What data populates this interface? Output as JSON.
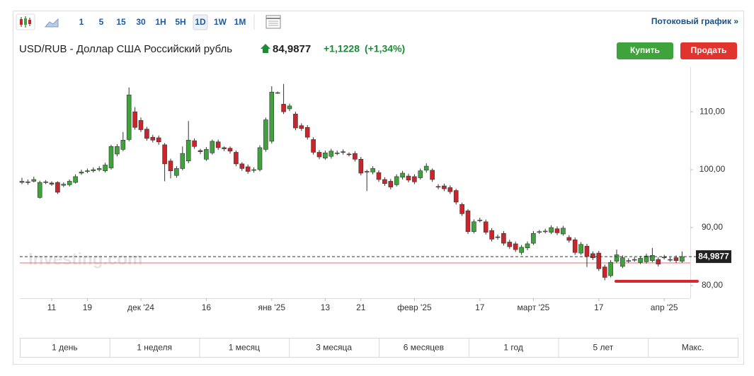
{
  "toolbar": {
    "intervals": [
      "1",
      "5",
      "15",
      "30",
      "1H",
      "5H",
      "1D",
      "1W",
      "1M"
    ],
    "link": "Потоковый график »"
  },
  "header": {
    "title": "USD/RUB - Доллар США Российский рубль",
    "price": "84,9877",
    "change": "+1,1228",
    "change_percent": "(+1,34%)",
    "buy": "Купить",
    "sell": "Продать"
  },
  "chart_data": {
    "type": "candlestick",
    "watermark": "Investing.com",
    "up_color": "#3fa33c",
    "down_color": "#c8262b",
    "grid": false,
    "categories": [
      null,
      null,
      null,
      null,
      null,
      "11",
      null,
      null,
      null,
      null,
      null,
      "19",
      null,
      null,
      null,
      null,
      null,
      null,
      null,
      null,
      "дек '24",
      null,
      null,
      null,
      null,
      null,
      null,
      null,
      null,
      null,
      null,
      "16",
      null,
      null,
      null,
      null,
      null,
      null,
      null,
      null,
      null,
      null,
      "янв '25",
      null,
      null,
      null,
      null,
      null,
      null,
      null,
      null,
      "13",
      null,
      null,
      null,
      null,
      null,
      "21",
      null,
      null,
      null,
      null,
      null,
      null,
      null,
      null,
      "февр '25",
      null,
      null,
      null,
      null,
      null,
      null,
      null,
      null,
      null,
      null,
      "17",
      null,
      null,
      null,
      null,
      null,
      null,
      null,
      null,
      "март '25",
      null,
      null,
      null,
      null,
      null,
      null,
      null,
      null,
      null,
      null,
      "17",
      null,
      null,
      null,
      null,
      null,
      null,
      null,
      null,
      null,
      null,
      "апр '25",
      null,
      null,
      null
    ],
    "open": [
      97.8,
      97.9,
      98.0,
      95.2,
      97.8,
      97.7,
      97.8,
      97.3,
      97.4,
      97.8,
      99.4,
      99.7,
      99.8,
      100.0,
      99.8,
      100.3,
      102.7,
      103.5,
      105.2,
      110.0,
      108.5,
      107.0,
      105.6,
      105.5,
      104.3,
      101.5,
      99.0,
      100.2,
      101.5,
      105.0,
      103.3,
      101.8,
      102.9,
      104.8,
      103.8,
      103.7,
      103.0,
      101.0,
      100.5,
      99.9,
      100.0,
      103.5,
      104.9,
      113.3,
      111.3,
      110.5,
      109.6,
      107.6,
      107.3,
      105.2,
      103.0,
      102.0,
      102.3,
      102.8,
      103.1,
      102.7,
      102.8,
      101.8,
      99.7,
      99.6,
      99.5,
      98.3,
      98.0,
      97.4,
      98.7,
      98.9,
      98.8,
      98.6,
      99.9,
      99.9,
      97.1,
      97.2,
      96.9,
      96.4,
      94.0,
      92.9,
      89.3,
      91.2,
      91.0,
      89.5,
      88.4,
      89.0,
      87.5,
      87.2,
      85.7,
      86.5,
      87.3,
      89.2,
      89.3,
      89.2,
      89.8,
      88.9,
      88.3,
      87.9,
      85.6,
      86.8,
      85.5,
      85.6,
      83.2,
      81.7,
      84.2,
      83.3,
      84.2,
      84.4,
      84.0,
      84.1,
      84.3,
      84.5,
      84.8,
      84.4,
      84.8,
      84.2
    ],
    "high": [
      98.6,
      98.3,
      98.8,
      98.1,
      98.2,
      98.0,
      98.0,
      97.8,
      98.3,
      99.2,
      100.0,
      100.2,
      100.4,
      100.6,
      101.2,
      104.3,
      104.4,
      106.5,
      114.2,
      110.8,
      109.0,
      107.4,
      106.0,
      105.9,
      104.6,
      101.9,
      100.6,
      104.0,
      108.4,
      105.4,
      103.6,
      103.9,
      105.2,
      105.2,
      104.0,
      104.0,
      103.3,
      101.3,
      100.9,
      100.4,
      104.2,
      109.0,
      114.4,
      113.5,
      114.8,
      111.4,
      110.0,
      108.0,
      107.7,
      105.6,
      103.4,
      103.3,
      103.6,
      103.3,
      103.5,
      103.0,
      103.2,
      102.2,
      100.0,
      100.6,
      99.9,
      98.7,
      98.4,
      99.2,
      99.8,
      99.3,
      99.2,
      100.2,
      101.1,
      100.2,
      97.5,
      97.6,
      97.3,
      96.7,
      94.3,
      93.2,
      91.4,
      91.7,
      91.4,
      89.9,
      88.8,
      89.4,
      87.9,
      87.6,
      87.0,
      87.6,
      89.4,
      89.6,
      89.8,
      90.4,
      90.2,
      90.3,
      88.7,
      88.3,
      87.5,
      87.2,
      85.9,
      86.0,
      83.6,
      84.4,
      86.2,
      85.2,
      84.7,
      84.9,
      85.1,
      85.5,
      86.5,
      84.9,
      85.3,
      84.9,
      85.2,
      85.9
    ],
    "low": [
      97.5,
      97.4,
      97.8,
      95.0,
      97.5,
      97.2,
      95.8,
      97.0,
      97.1,
      97.6,
      99.1,
      99.4,
      99.5,
      99.7,
      99.5,
      100.0,
      102.3,
      103.2,
      104.9,
      106.9,
      106.5,
      105.0,
      104.7,
      104.3,
      98.0,
      98.5,
      98.6,
      99.9,
      101.1,
      103.6,
      102.7,
      101.5,
      102.6,
      103.4,
      103.2,
      102.8,
      100.6,
      99.8,
      99.3,
      99.5,
      99.7,
      103.1,
      104.5,
      113.1,
      109.6,
      110.1,
      106.8,
      106.7,
      105.2,
      102.6,
      101.8,
      101.7,
      101.9,
      102.5,
      102.6,
      102.3,
      101.4,
      99.0,
      96.3,
      99.2,
      97.9,
      97.2,
      96.6,
      97.1,
      98.3,
      97.8,
      97.5,
      98.3,
      99.5,
      97.9,
      96.6,
      96.3,
      95.8,
      94.0,
      92.0,
      88.9,
      89.0,
      90.9,
      88.8,
      87.6,
      87.9,
      86.9,
      86.3,
      85.8,
      85.3,
      86.1,
      87.0,
      88.9,
      89.0,
      88.9,
      88.7,
      88.6,
      87.4,
      85.3,
      85.3,
      83.2,
      84.4,
      82.5,
      80.9,
      81.4,
      83.9,
      83.0,
      83.9,
      84.1,
      83.7,
      83.8,
      84.0,
      83.3,
      84.5,
      84.1,
      83.9,
      83.9
    ],
    "close": [
      98.0,
      97.8,
      98.3,
      97.8,
      97.9,
      97.5,
      96.1,
      97.5,
      98.0,
      98.8,
      99.6,
      99.8,
      100.0,
      100.2,
      100.8,
      104.0,
      104.0,
      105.1,
      112.9,
      107.3,
      106.9,
      105.4,
      105.1,
      104.8,
      101.0,
      99.8,
      100.2,
      102.8,
      105.1,
      104.0,
      103.1,
      103.5,
      104.9,
      103.8,
      103.6,
      103.2,
      101.0,
      100.2,
      99.7,
      100.0,
      103.8,
      108.6,
      113.4,
      113.3,
      110.0,
      111.0,
      107.2,
      107.1,
      105.6,
      103.0,
      102.2,
      102.9,
      103.2,
      102.9,
      103.0,
      102.6,
      101.8,
      99.4,
      99.6,
      100.2,
      98.3,
      97.6,
      97.0,
      98.8,
      99.4,
      98.2,
      97.9,
      99.8,
      100.6,
      98.3,
      97.0,
      96.7,
      96.2,
      94.4,
      92.4,
      89.3,
      91.0,
      91.3,
      89.2,
      88.0,
      88.3,
      87.3,
      86.7,
      86.2,
      86.6,
      87.2,
      89.0,
      89.3,
      89.4,
      90.0,
      89.1,
      89.9,
      87.8,
      85.7,
      87.1,
      85.0,
      84.8,
      82.9,
      81.4,
      84.0,
      85.3,
      84.8,
      84.3,
      84.5,
      84.7,
      85.1,
      85.2,
      83.7,
      84.9,
      84.5,
      84.3,
      84.9877
    ],
    "last_price": {
      "value": 84.9877,
      "label": "84,9877"
    },
    "ylim": [
      77.8,
      117.7
    ],
    "yticks": [
      {
        "value": 80,
        "label": "80,00"
      },
      {
        "value": 90,
        "label": "90,00"
      },
      {
        "value": 100,
        "label": "100,00"
      },
      {
        "value": 110,
        "label": "110,00"
      }
    ]
  },
  "ranges": [
    "1 день",
    "1 неделя",
    "1 месяц",
    "3 месяца",
    "6 месяцев",
    "1 год",
    "5 лет",
    "Макс."
  ]
}
